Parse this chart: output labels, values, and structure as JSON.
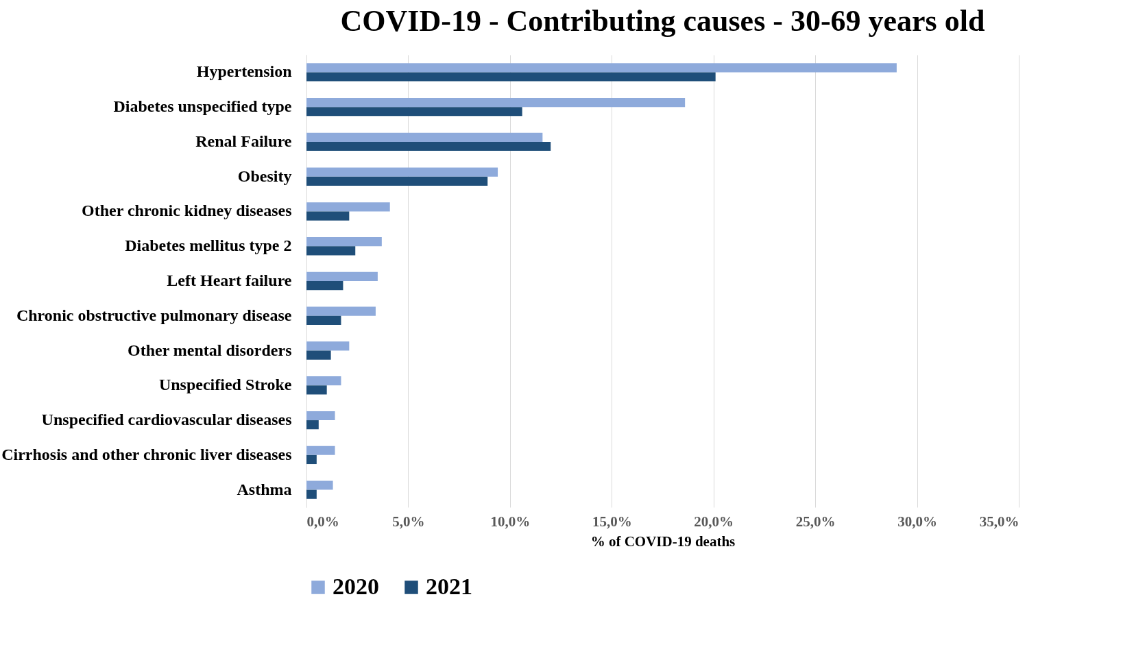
{
  "chart_data": {
    "type": "bar",
    "orientation": "horizontal",
    "title": "COVID-19 - Contributing causes  - 30-69 years old",
    "xlabel": "% of COVID-19 deaths",
    "categories": [
      "Hypertension",
      "Diabetes unspecified type",
      "Renal Failure",
      "Obesity",
      "Other chronic kidney diseases",
      "Diabetes mellitus type 2",
      "Left Heart failure",
      "Chronic obstructive pulmonary disease",
      "Other mental disorders",
      "Unspecified Stroke",
      "Unspecified cardiovascular diseases",
      "Cirrhosis and other chronic liver diseases",
      "Asthma"
    ],
    "series": [
      {
        "name": "2020",
        "color": "#8eaadb",
        "values": [
          29.0,
          18.6,
          11.6,
          9.4,
          4.1,
          3.7,
          3.5,
          3.4,
          2.1,
          1.7,
          1.4,
          1.4,
          1.3
        ]
      },
      {
        "name": "2021",
        "color": "#1f4e79",
        "values": [
          20.1,
          10.6,
          12.0,
          8.9,
          2.1,
          2.4,
          1.8,
          1.7,
          1.2,
          1.0,
          0.6,
          0.5,
          0.5
        ]
      }
    ],
    "xlim": [
      0,
      35
    ],
    "xticks": [
      {
        "value": 0,
        "label": "0,0%"
      },
      {
        "value": 5,
        "label": "5,0%"
      },
      {
        "value": 10,
        "label": "10,0%"
      },
      {
        "value": 15,
        "label": "15,0%"
      },
      {
        "value": 20,
        "label": "20,0%"
      },
      {
        "value": 25,
        "label": "25,0%"
      },
      {
        "value": 30,
        "label": "30,0%"
      },
      {
        "value": 35,
        "label": "35,0%"
      }
    ],
    "grid": "x",
    "legend": "bottom"
  }
}
